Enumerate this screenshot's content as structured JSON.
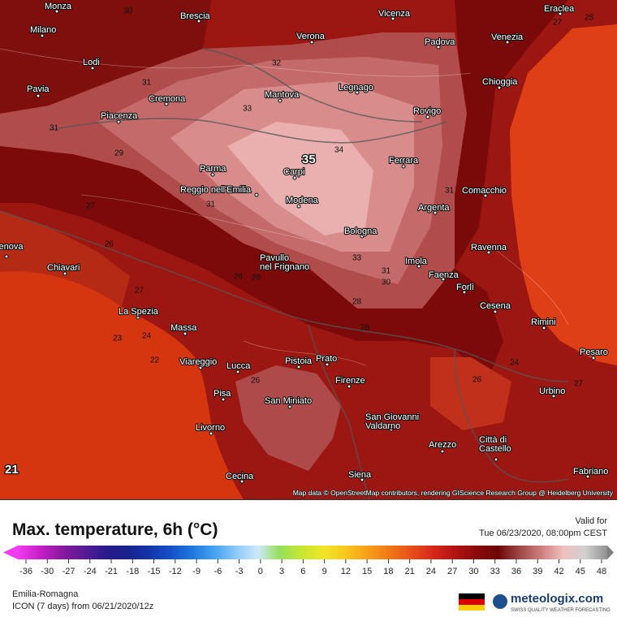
{
  "header": {
    "title": "Max. temperature, 6h (°C)",
    "valid_label": "Valid for",
    "valid_time": "Tue 06/23/2020, 08:00pm CEST"
  },
  "map": {
    "cities": [
      {
        "lines": [
          "Monza"
        ]
      },
      {
        "lines": [
          "Brescia"
        ]
      },
      {
        "lines": [
          "Verona"
        ]
      },
      {
        "lines": [
          "Vicenza"
        ]
      },
      {
        "lines": [
          "Padova"
        ]
      },
      {
        "lines": [
          "Venezia"
        ]
      },
      {
        "lines": [
          "Eraclea"
        ]
      },
      {
        "lines": [
          "Milano"
        ]
      },
      {
        "lines": [
          "Lodi"
        ]
      },
      {
        "lines": [
          "Chioggia"
        ]
      },
      {
        "lines": [
          "Pavia"
        ]
      },
      {
        "lines": [
          "Cremona"
        ]
      },
      {
        "lines": [
          "Mantova"
        ]
      },
      {
        "lines": [
          "Legnago"
        ]
      },
      {
        "lines": [
          "Rovigo"
        ]
      },
      {
        "lines": [
          "Piacenza"
        ]
      },
      {
        "lines": [
          "Ferrara"
        ]
      },
      {
        "lines": [
          "Parma"
        ]
      },
      {
        "lines": [
          "Carpi"
        ]
      },
      {
        "lines": [
          "Reggio nell'Emilia"
        ]
      },
      {
        "lines": [
          "Modena"
        ]
      },
      {
        "lines": [
          "Comacchio"
        ]
      },
      {
        "lines": [
          "Argenta"
        ]
      },
      {
        "lines": [
          "Bologna"
        ]
      },
      {
        "lines": [
          "Ravenna"
        ]
      },
      {
        "lines": [
          "Genova"
        ]
      },
      {
        "lines": [
          "Chiavari"
        ]
      },
      {
        "lines": [
          "Pavullo",
          "nel Frignano"
        ]
      },
      {
        "lines": [
          "Imola"
        ]
      },
      {
        "lines": [
          "Faenza"
        ]
      },
      {
        "lines": [
          "Forlì"
        ]
      },
      {
        "lines": [
          "La Spezia"
        ]
      },
      {
        "lines": [
          "Massa"
        ]
      },
      {
        "lines": [
          "Cesena"
        ]
      },
      {
        "lines": [
          "Rimini"
        ]
      },
      {
        "lines": [
          "Pesaro"
        ]
      },
      {
        "lines": [
          "Viareggio"
        ]
      },
      {
        "lines": [
          "Lucca"
        ]
      },
      {
        "lines": [
          "Pistoia"
        ]
      },
      {
        "lines": [
          "Prato"
        ]
      },
      {
        "lines": [
          "Firenze"
        ]
      },
      {
        "lines": [
          "Urbino"
        ]
      },
      {
        "lines": [
          "Pisa"
        ]
      },
      {
        "lines": [
          "San Miniato"
        ]
      },
      {
        "lines": [
          "San Giovanni",
          "Valdarno"
        ]
      },
      {
        "lines": [
          "Livorno"
        ]
      },
      {
        "lines": [
          "Arezzo"
        ]
      },
      {
        "lines": [
          "Città di",
          "Castello"
        ]
      },
      {
        "lines": [
          "Cecina"
        ]
      },
      {
        "lines": [
          "Siena"
        ]
      },
      {
        "lines": [
          "Fabriano"
        ]
      }
    ],
    "contour_labels": [
      30,
      27,
      25,
      32,
      31,
      33,
      34,
      31,
      29,
      27,
      31,
      31,
      26,
      33,
      31,
      30,
      26,
      26,
      27,
      23,
      24,
      22,
      28,
      28,
      26,
      24,
      27,
      26
    ],
    "highlight_labels": [
      35,
      21
    ],
    "attribution": "Map data © OpenStreetMap contributors, rendering GIScience Research Group @ Heidelberg University"
  },
  "legend": {
    "ticks": [
      -36,
      -30,
      -27,
      -24,
      -21,
      -18,
      -15,
      -12,
      -9,
      -6,
      -3,
      0,
      3,
      6,
      9,
      12,
      15,
      18,
      21,
      24,
      27,
      30,
      33,
      36,
      39,
      42,
      45,
      48
    ]
  },
  "footer": {
    "region": "Emilia-Romagna",
    "model": "ICON (7 days) from 06/21/2020/12z",
    "brand": "meteologix.com",
    "tagline": "SWISS QUALITY WEATHER FORECASTING"
  }
}
